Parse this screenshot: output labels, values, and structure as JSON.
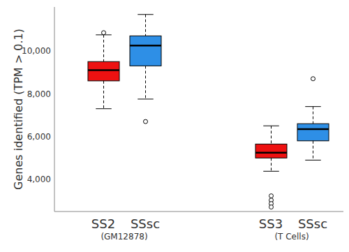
{
  "chart_data": {
    "type": "box",
    "categories": [
      "SS2",
      "SSsc",
      null,
      null,
      "SS3",
      "SSsc"
    ],
    "groups": [
      {
        "label": "(GM12878)",
        "span": [
          0,
          1
        ]
      },
      {
        "label": "(T Cells)",
        "span": [
          4,
          5
        ]
      }
    ],
    "y_label": "Genes identified (TPM > 0.1)",
    "ylim": [
      2500,
      12050
    ],
    "yticks": [
      {
        "value": 4000,
        "label": "4,000"
      },
      {
        "value": 6000,
        "label": "6,000"
      },
      {
        "value": 8000,
        "label": "8,000"
      },
      {
        "value": 10000,
        "label": "10,000"
      }
    ],
    "boxes": [
      {
        "min": 7300,
        "q1": 8600,
        "median": 9100,
        "q3": 9500,
        "max": 10750,
        "outliers": [
          10850
        ]
      },
      {
        "min": 7750,
        "q1": 9300,
        "median": 10250,
        "q3": 10700,
        "max": 11700,
        "outliers": [
          6700
        ]
      },
      null,
      null,
      {
        "min": 4380,
        "q1": 5000,
        "median": 5250,
        "q3": 5650,
        "max": 6500,
        "outliers": [
          3230,
          3030,
          2870,
          2710
        ]
      },
      {
        "min": 4900,
        "q1": 5800,
        "median": 6350,
        "q3": 6600,
        "max": 7400,
        "outliers": [
          8700
        ]
      }
    ],
    "colors": [
      "#ee1111",
      "#2e8fe6",
      null,
      null,
      "#ee1111",
      "#2e8fe6"
    ],
    "grid": false
  }
}
